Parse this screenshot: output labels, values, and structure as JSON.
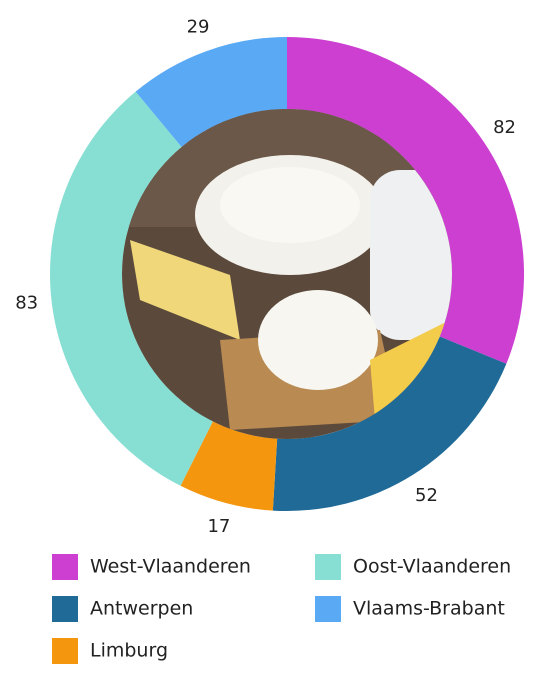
{
  "chart_data": {
    "type": "pie",
    "donut": true,
    "categories": [
      "West-Vlaanderen",
      "Antwerpen",
      "Limburg",
      "Oost-Vlaanderen",
      "Vlaams-Brabant"
    ],
    "values": [
      82,
      52,
      17,
      83,
      29
    ],
    "colors": [
      "#cc3fd1",
      "#1f6a96",
      "#f5960f",
      "#87dfd3",
      "#5aa9f5"
    ],
    "legend_order": [
      0,
      3,
      1,
      4,
      2
    ]
  }
}
